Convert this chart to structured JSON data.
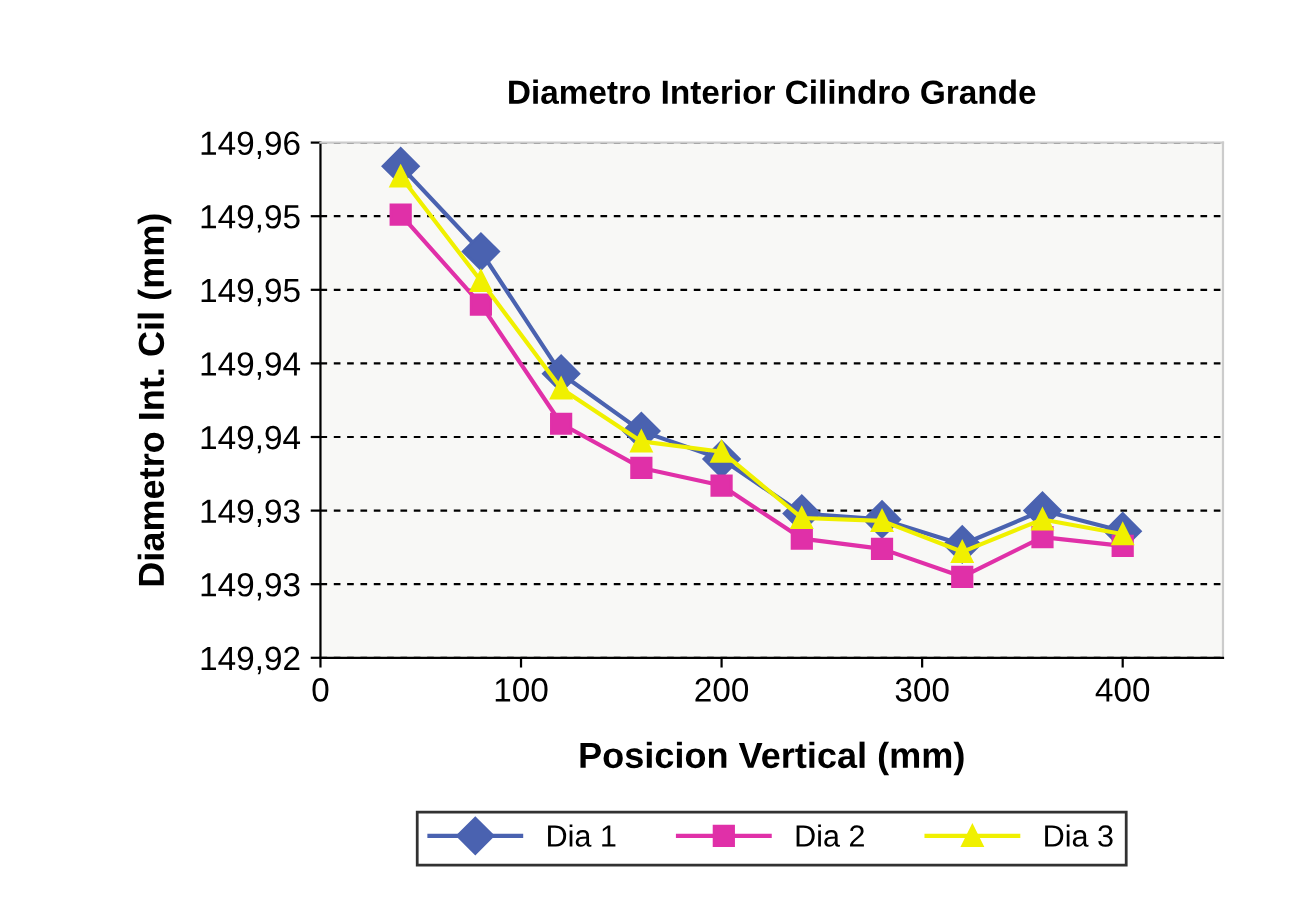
{
  "chart_data": {
    "type": "line",
    "title": "Diametro Interior Cilindro Grande",
    "xlabel": "Posicion Vertical (mm)",
    "ylabel": "Diametro Int. Cil (mm)",
    "x": [
      40,
      80,
      120,
      160,
      200,
      240,
      280,
      320,
      360,
      400
    ],
    "series": [
      {
        "name": "Dia 1",
        "color": "#4a62b0",
        "marker": "diamond",
        "values": [
          149.9534,
          149.9476,
          149.9393,
          149.9354,
          149.9335,
          149.9298,
          149.9294,
          149.9277,
          149.93,
          149.9286
        ]
      },
      {
        "name": "Dia 2",
        "color": "#e030a8",
        "marker": "square",
        "values": [
          149.9501,
          149.944,
          149.9359,
          149.9329,
          149.9317,
          149.9281,
          149.9274,
          149.9255,
          149.9282,
          149.9276
        ]
      },
      {
        "name": "Dia 3",
        "color": "#f0f000",
        "marker": "triangle",
        "values": [
          149.9527,
          149.9456,
          149.9383,
          149.9347,
          149.934,
          149.9295,
          149.9293,
          149.9272,
          149.9294,
          149.9284
        ]
      }
    ],
    "xlim": [
      0,
      450
    ],
    "xticks": [
      0,
      100,
      200,
      300,
      400
    ],
    "ylim": [
      149.92,
      149.955
    ],
    "yticks": [
      {
        "value": 149.92,
        "label": "149,92"
      },
      {
        "value": 149.925,
        "label": "149,93"
      },
      {
        "value": 149.93,
        "label": "149,93"
      },
      {
        "value": 149.935,
        "label": "149,94"
      },
      {
        "value": 149.94,
        "label": "149,94"
      },
      {
        "value": 149.945,
        "label": "149,95"
      },
      {
        "value": 149.95,
        "label": "149,95"
      },
      {
        "value": 149.955,
        "label": "149,96"
      }
    ],
    "grid": "y",
    "legend": "bottom",
    "line_style": "solid"
  }
}
